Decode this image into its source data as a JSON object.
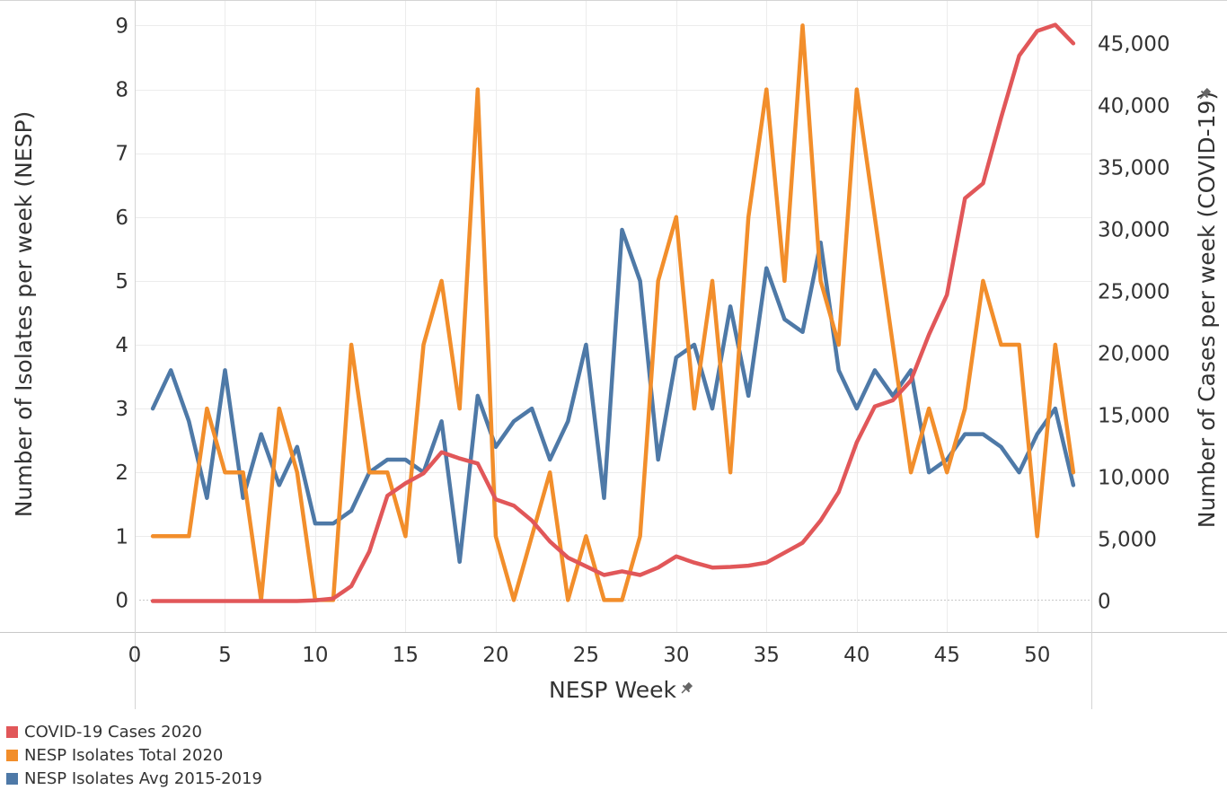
{
  "chart_data": {
    "type": "line",
    "xlabel": "NESP Week",
    "ylabel_left": "Number of Isolates per week (NESP)",
    "ylabel_right": "Number of Cases per week (COVID-19)",
    "x": [
      1,
      2,
      3,
      4,
      5,
      6,
      7,
      8,
      9,
      10,
      11,
      12,
      13,
      14,
      15,
      16,
      17,
      18,
      19,
      20,
      21,
      22,
      23,
      24,
      25,
      26,
      27,
      28,
      29,
      30,
      31,
      32,
      33,
      34,
      35,
      36,
      37,
      38,
      39,
      40,
      41,
      42,
      43,
      44,
      45,
      46,
      47,
      48,
      49,
      50,
      51,
      52
    ],
    "xlim": [
      0,
      53
    ],
    "x_ticks": [
      0,
      5,
      10,
      15,
      20,
      25,
      30,
      35,
      40,
      45,
      50
    ],
    "x_tick_labels": [
      "0",
      "5",
      "10",
      "15",
      "20",
      "25",
      "30",
      "35",
      "40",
      "45",
      "50"
    ],
    "ylim_left": [
      -0.5,
      9.4
    ],
    "y_ticks_left": [
      0,
      1,
      2,
      3,
      4,
      5,
      6,
      7,
      8,
      9
    ],
    "y_tick_labels_left": [
      "0",
      "1",
      "2",
      "3",
      "4",
      "5",
      "6",
      "7",
      "8",
      "9"
    ],
    "ylim_right": [
      -2500,
      48500
    ],
    "y_ticks_right": [
      0,
      5000,
      10000,
      15000,
      20000,
      25000,
      30000,
      35000,
      40000,
      45000
    ],
    "y_tick_labels_right": [
      "0",
      "5,000",
      "10,000",
      "15,000",
      "20,000",
      "25,000",
      "30,000",
      "35,000",
      "40,000",
      "45,000"
    ],
    "grid": true,
    "legend_position": "bottom-left",
    "series": [
      {
        "name": "COVID-19 Cases 2020",
        "axis": "right",
        "color": "#e15759",
        "values": [
          0,
          0,
          0,
          0,
          0,
          0,
          0,
          0,
          0,
          50,
          200,
          1200,
          4000,
          8500,
          9500,
          10300,
          12000,
          11500,
          11100,
          8200,
          7700,
          6500,
          4800,
          3500,
          2800,
          2100,
          2400,
          2100,
          2700,
          3600,
          3100,
          2700,
          2750,
          2850,
          3100,
          3900,
          4700,
          6500,
          8800,
          12800,
          15700,
          16200,
          17800,
          21500,
          24700,
          32500,
          33700,
          39000,
          44000,
          46000,
          46500,
          45000
        ]
      },
      {
        "name": "NESP Isolates Total 2020",
        "axis": "left",
        "color": "#f28e2b",
        "values": [
          1,
          1,
          1,
          3,
          2,
          2,
          0,
          3,
          2,
          0,
          0,
          4,
          2,
          2,
          1,
          4,
          5,
          3,
          8,
          1,
          0,
          1,
          2,
          0,
          1,
          0,
          0,
          1,
          5,
          6,
          3,
          5,
          2,
          6,
          8,
          5,
          9,
          5,
          4,
          8,
          6,
          4,
          2,
          3,
          2,
          3,
          5,
          4,
          4,
          1,
          4,
          2
        ]
      },
      {
        "name": "NESP Isolates Avg 2015-2019",
        "axis": "left",
        "color": "#4e79a7",
        "values": [
          3,
          3.6,
          2.8,
          1.6,
          3.6,
          1.6,
          2.6,
          1.8,
          2.4,
          1.2,
          1.2,
          1.4,
          2,
          2.2,
          2.2,
          2,
          2.8,
          0.6,
          3.2,
          2.4,
          2.8,
          3,
          2.2,
          2.8,
          4,
          1.6,
          5.8,
          5,
          2.2,
          3.8,
          4,
          3,
          4.6,
          3.2,
          5.2,
          4.4,
          4.2,
          5.6,
          3.6,
          3,
          3.6,
          3.2,
          3.6,
          2,
          2.2,
          2.6,
          2.6,
          2.4,
          2,
          2.6,
          3,
          1.8
        ]
      }
    ]
  }
}
